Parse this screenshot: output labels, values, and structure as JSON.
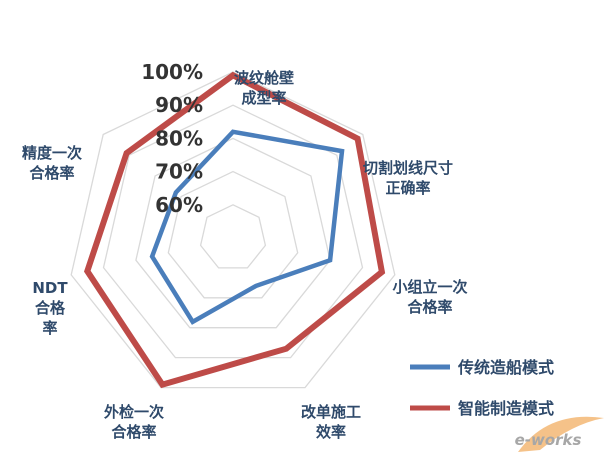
{
  "chart_data": {
    "type": "radar",
    "axes": [
      [
        "波纹舱壁",
        "成型率"
      ],
      [
        "切割划线尺寸",
        "正确率"
      ],
      [
        "小组立一次",
        "合格率"
      ],
      [
        "改单施工",
        "效率"
      ],
      [
        "外检一次",
        "合格率"
      ],
      [
        "NDT",
        "合格",
        "率"
      ],
      [
        "精度一次",
        "合格率"
      ]
    ],
    "rmin": 50,
    "rmax": 100,
    "ticks": [
      60,
      70,
      80,
      90,
      100
    ],
    "tick_labels": [
      "60%",
      "70%",
      "80%",
      "90%",
      "100%"
    ],
    "series": [
      {
        "name": "传统造船模式",
        "color": "#4a7ebb",
        "values": [
          82,
          92,
          80,
          66,
          78,
          75,
          72
        ]
      },
      {
        "name": "智能制造模式",
        "color": "#be4b48",
        "values": [
          99,
          98,
          96,
          87,
          99,
          95,
          91
        ]
      }
    ],
    "grid": true,
    "legend_position": "bottom-right"
  },
  "watermark": {
    "text": "e-works",
    "color": "#f2b36b"
  }
}
